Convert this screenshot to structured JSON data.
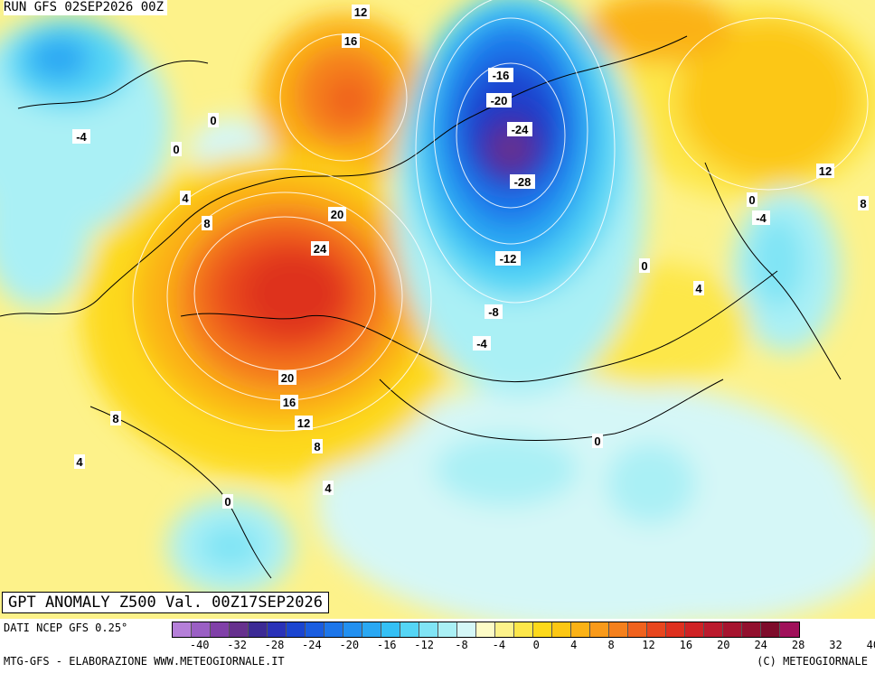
{
  "header": {
    "run_label": "RUN GFS 02SEP2026 00Z"
  },
  "title": "GPT ANOMALY Z500 Val. 00Z17SEP2026",
  "footer": {
    "data_source": "DATI NCEP GFS 0.25°",
    "credit_left": "MTG-GFS - ELABORAZIONE WWW.METEOGIORNALE.IT",
    "credit_right": "(C) METEOGIORNALE"
  },
  "colorbar": {
    "colors": [
      "#b57fd9",
      "#9a5fc4",
      "#8040a8",
      "#66308e",
      "#3c2a95",
      "#2a32b8",
      "#1b45d0",
      "#1a5de0",
      "#1d76ea",
      "#2290f0",
      "#2aa8f3",
      "#35c0f5",
      "#55d5f5",
      "#80e4f5",
      "#aaf0f5",
      "#d5f7f7",
      "#fdfbc6",
      "#fdf28a",
      "#fde74a",
      "#fdd91a",
      "#fcc713",
      "#fbb216",
      "#f99a1a",
      "#f5801c",
      "#f0621e",
      "#e8461e",
      "#de301f",
      "#cf2225",
      "#bb1a2d",
      "#a6142f",
      "#92102e",
      "#7e0c2b",
      "#a0105a"
    ],
    "labels": [
      "-40",
      "-32",
      "-28",
      "-24",
      "-20",
      "-16",
      "-12",
      "-8",
      "-4",
      "0",
      "4",
      "8",
      "12",
      "16",
      "20",
      "24",
      "28",
      "32",
      "40"
    ],
    "label_steps": [
      1,
      3,
      5,
      7,
      9,
      11,
      13,
      15,
      17,
      19,
      21,
      23,
      25,
      27,
      29,
      31,
      33,
      35,
      37
    ]
  },
  "contour_labels": [
    {
      "text": "12"
    },
    {
      "text": "16"
    },
    {
      "text": "-16"
    },
    {
      "text": "-20"
    },
    {
      "text": "-24"
    },
    {
      "text": "-28"
    },
    {
      "text": "0"
    },
    {
      "text": "-4"
    },
    {
      "text": "0"
    },
    {
      "text": "4"
    },
    {
      "text": "8"
    },
    {
      "text": "20"
    },
    {
      "text": "24"
    },
    {
      "text": "-12"
    },
    {
      "text": "-8"
    },
    {
      "text": "-4"
    },
    {
      "text": "0"
    },
    {
      "text": "4"
    },
    {
      "text": "12"
    },
    {
      "text": "8"
    },
    {
      "text": "0"
    },
    {
      "text": "-4"
    },
    {
      "text": "20"
    },
    {
      "text": "16"
    },
    {
      "text": "12"
    },
    {
      "text": "8"
    },
    {
      "text": "4"
    },
    {
      "text": "8"
    },
    {
      "text": "4"
    },
    {
      "text": "0"
    },
    {
      "text": "0"
    }
  ],
  "legend_units": "Z500 anomaly"
}
